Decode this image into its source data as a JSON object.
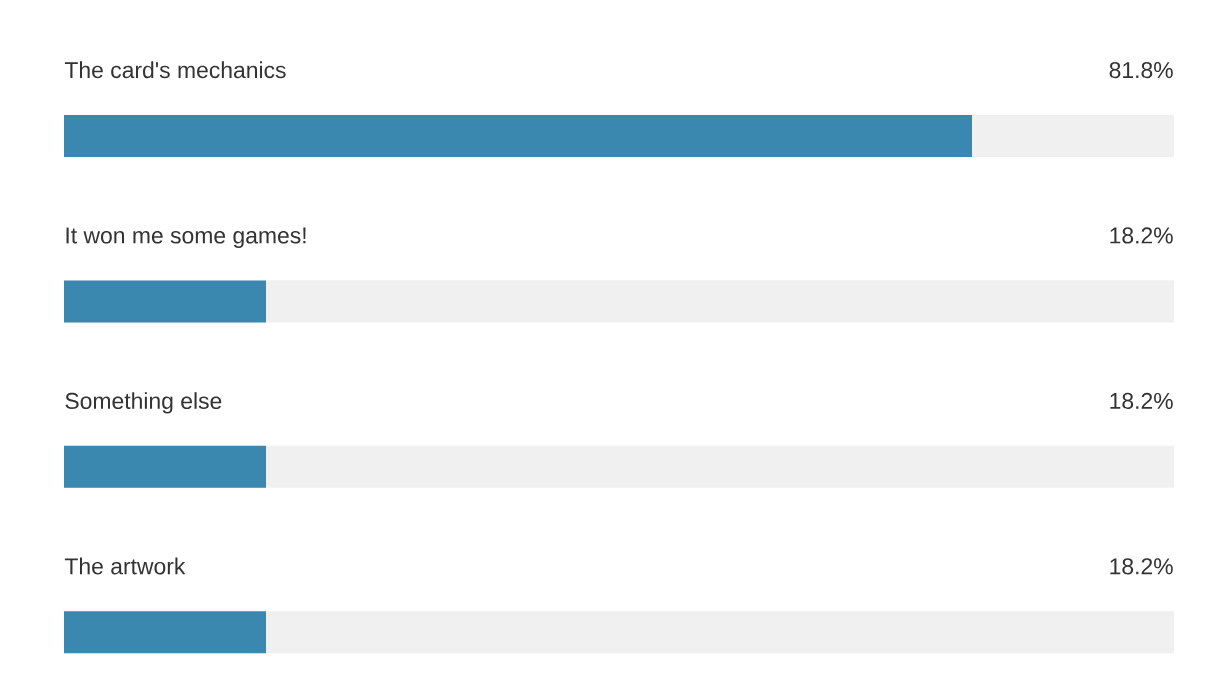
{
  "chart_data": {
    "type": "bar",
    "orientation": "horizontal",
    "categories": [
      "The card's mechanics",
      "It won me some games!",
      "Something else",
      "The artwork"
    ],
    "values": [
      81.8,
      18.2,
      18.2,
      18.2
    ],
    "value_labels": [
      "81.8%",
      "18.2%",
      "18.2%",
      "18.2%"
    ],
    "color": "#3a87b0",
    "xlim": [
      0,
      100
    ],
    "tick_labels": false
  }
}
